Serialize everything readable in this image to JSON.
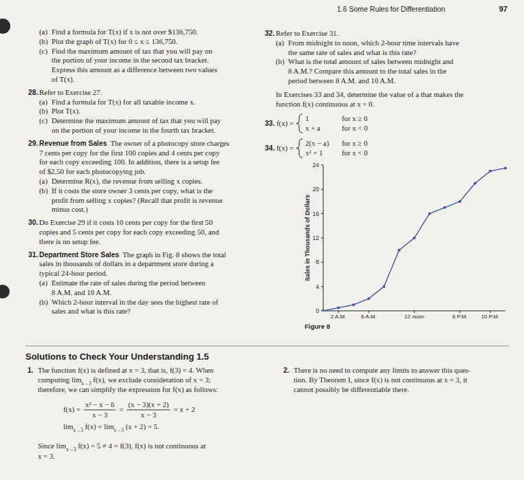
{
  "header": {
    "section": "1.6 Some Rules for Differentiation",
    "page": 97
  },
  "left_column": [
    {
      "parts": [
        {
          "label": "(a)",
          "lines": [
            "Find a formula for T(x) if x is not over $136,750."
          ]
        },
        {
          "label": "(b)",
          "lines": [
            "Plot the graph of T(x) for 0 ≤ x ≤ 136,750."
          ]
        },
        {
          "label": "(c)",
          "lines": [
            "Find the maximum amount of tax that you will pay on",
            "the portion of your income in the second tax bracket.",
            "Express this amount as a difference between two values",
            "of T(x)."
          ]
        }
      ]
    },
    {
      "num": "28.",
      "lines": [
        "Refer to Exercise 27."
      ],
      "parts": [
        {
          "label": "(a)",
          "lines": [
            "Find a formula for T(x) for all taxable income x."
          ]
        },
        {
          "label": "(b)",
          "lines": [
            "Plot T(x)."
          ]
        },
        {
          "label": "(c)",
          "lines": [
            "Determine the maximum amount of tax that you will pay",
            "on the portion of your income in the fourth tax bracket."
          ]
        }
      ]
    },
    {
      "num": "29.",
      "heading": "Revenue from Sales",
      "lines": [
        "The owner of a photocopy store charges",
        "7 cents per copy for the first 100 copies and 4 cents per copy",
        "for each copy exceeding 100. In addition, there is a setup fee",
        "of $2.50 for each photocopying job."
      ],
      "parts": [
        {
          "label": "(a)",
          "lines": [
            "Determine R(x), the revenue from selling x copies."
          ]
        },
        {
          "label": "(b)",
          "lines": [
            "If it costs the store owner 3 cents per copy, what is the",
            "profit from selling x copies? (Recall that profit is revenue",
            "minus cost.)"
          ]
        }
      ]
    },
    {
      "num": "30.",
      "lines": [
        "Do Exercise 29 if it costs 10 cents per copy for the first 50",
        "copies and 5 cents per copy for each copy exceeding 50, and",
        "there is no setup fee."
      ]
    },
    {
      "num": "31.",
      "heading": "Department Store Sales",
      "lines": [
        "The graph in Fig. 8 shows the total",
        "sales in thousands of dollars in a department store during a",
        "typical 24-hour period."
      ],
      "parts": [
        {
          "label": "(a)",
          "lines": [
            "Estimate the rate of sales during the period between",
            "8 A.M. and 10 A.M."
          ]
        },
        {
          "label": "(b)",
          "lines": [
            "Which 2-hour interval in the day sees the highest rate of",
            "sales and what is this rate?"
          ]
        }
      ]
    }
  ],
  "right_column": [
    {
      "num": "32.",
      "lines": [
        "Refer to Exercise 31."
      ],
      "parts": [
        {
          "label": "(a)",
          "lines": [
            "From midnight to noon, which 2-hour time intervals have",
            "the same rate of sales and what is this rate?"
          ]
        },
        {
          "label": "(b)",
          "lines": [
            "What is the total amount of sales between midnight and",
            "8 A.M.? Compare this amount to the total sales in the",
            "period between 8 A.M. and 10 A.M."
          ]
        }
      ]
    },
    {
      "lines": [
        "In Exercises 33 and 34, determine the value of a that makes the",
        "function f(x) continuous at x = 0."
      ]
    }
  ],
  "piecewise": [
    {
      "num": "33.",
      "lhs": "f(x) =",
      "cases": [
        {
          "expr": "1",
          "cond": "for x ≥ 0"
        },
        {
          "expr": "x + a",
          "cond": "for x < 0"
        }
      ]
    },
    {
      "num": "34.",
      "lhs": "f(x) =",
      "cases": [
        {
          "expr": "2(x − a)",
          "cond": "for x ≥ 0"
        },
        {
          "expr": "x² + 1",
          "cond": "for x < 0"
        }
      ]
    }
  ],
  "chart_data": {
    "type": "line",
    "title": "Figure 8",
    "ylabel": "Sales in Thousands of Dollars",
    "x": [
      0,
      2,
      4,
      6,
      8,
      10,
      12,
      14,
      16,
      18,
      20,
      22,
      24
    ],
    "values": [
      0,
      0.5,
      1,
      2,
      4,
      10,
      12,
      16,
      17,
      18,
      21,
      23,
      23.5
    ],
    "xlim": [
      0,
      24
    ],
    "ylim": [
      0,
      24
    ],
    "xticks": [
      {
        "value": 2,
        "label": "2 A.M."
      },
      {
        "value": 6,
        "label": "6 A.M."
      },
      {
        "value": 12,
        "label": "12 noon"
      },
      {
        "value": 18,
        "label": "6 P.M."
      },
      {
        "value": 22,
        "label": "10 P.M."
      }
    ],
    "yticks": [
      0,
      4,
      8,
      12,
      16,
      20,
      24
    ],
    "color": "#3a58a0",
    "marker": "circle",
    "grid": false
  },
  "solutions": {
    "heading": "Solutions to Check Your Understanding 1.5",
    "items": [
      {
        "num": "1.",
        "lines": [
          "The function f(x) is defined at x = 3, that is, f(3) = 4. When",
          [
            "computing ",
            {
              "t": "lim",
              "sub": "x→3"
            },
            " f(x), we exclude consideration of x = 3;"
          ],
          "therefore, we can simplify the expression for f(x) as follows:"
        ],
        "equation": {
          "lhs": "f(x) =",
          "terms": [
            {
              "num": "x² − x − 6",
              "den": "x − 3"
            },
            "=",
            {
              "num": "(x − 3)(x + 2)",
              "den": "x − 3"
            },
            "= x + 2"
          ]
        },
        "limit": [
          {
            "t": "lim",
            "sub": "x→3"
          },
          " f(x) = ",
          {
            "t": "lim",
            "sub": "x→3"
          },
          " (x + 2) = 5."
        ],
        "closing": [
          [
            "Since ",
            {
              "t": "lim",
              "sub": "x→3"
            },
            " f(x) = 5 ≠ 4 = f(3), f(x) is not continuous at"
          ],
          "x = 3."
        ]
      },
      {
        "num": "2.",
        "lines": [
          "There is no need to compute any limits to answer this ques-",
          "tion. By Theorem I, since f(x) is not continuous at x = 3, it",
          "cannot possibly be differentiable there."
        ]
      }
    ]
  }
}
